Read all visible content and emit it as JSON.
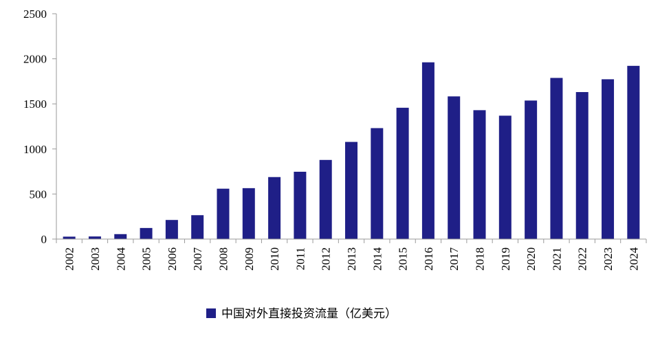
{
  "chart_data": {
    "type": "bar",
    "categories": [
      "2002",
      "2003",
      "2004",
      "2005",
      "2006",
      "2007",
      "2008",
      "2009",
      "2010",
      "2011",
      "2012",
      "2013",
      "2014",
      "2015",
      "2016",
      "2017",
      "2018",
      "2019",
      "2020",
      "2021",
      "2022",
      "2023",
      "2024"
    ],
    "series": [
      {
        "name": "中国对外直接投资流量（亿美元）",
        "values": [
          27,
          29,
          55,
          123,
          212,
          265,
          559,
          565,
          688,
          747,
          878,
          1078,
          1231,
          1457,
          1961,
          1583,
          1430,
          1369,
          1537,
          1788,
          1631,
          1773,
          1922
        ]
      }
    ],
    "ylim": [
      0,
      2500
    ],
    "yticks": [
      "0",
      "500",
      "1000",
      "1500",
      "2000",
      "2500"
    ],
    "legend_position": "bottom",
    "grid": false,
    "colors": {
      "bar": "#1f1f87",
      "axis": "#9a9a9a"
    }
  }
}
